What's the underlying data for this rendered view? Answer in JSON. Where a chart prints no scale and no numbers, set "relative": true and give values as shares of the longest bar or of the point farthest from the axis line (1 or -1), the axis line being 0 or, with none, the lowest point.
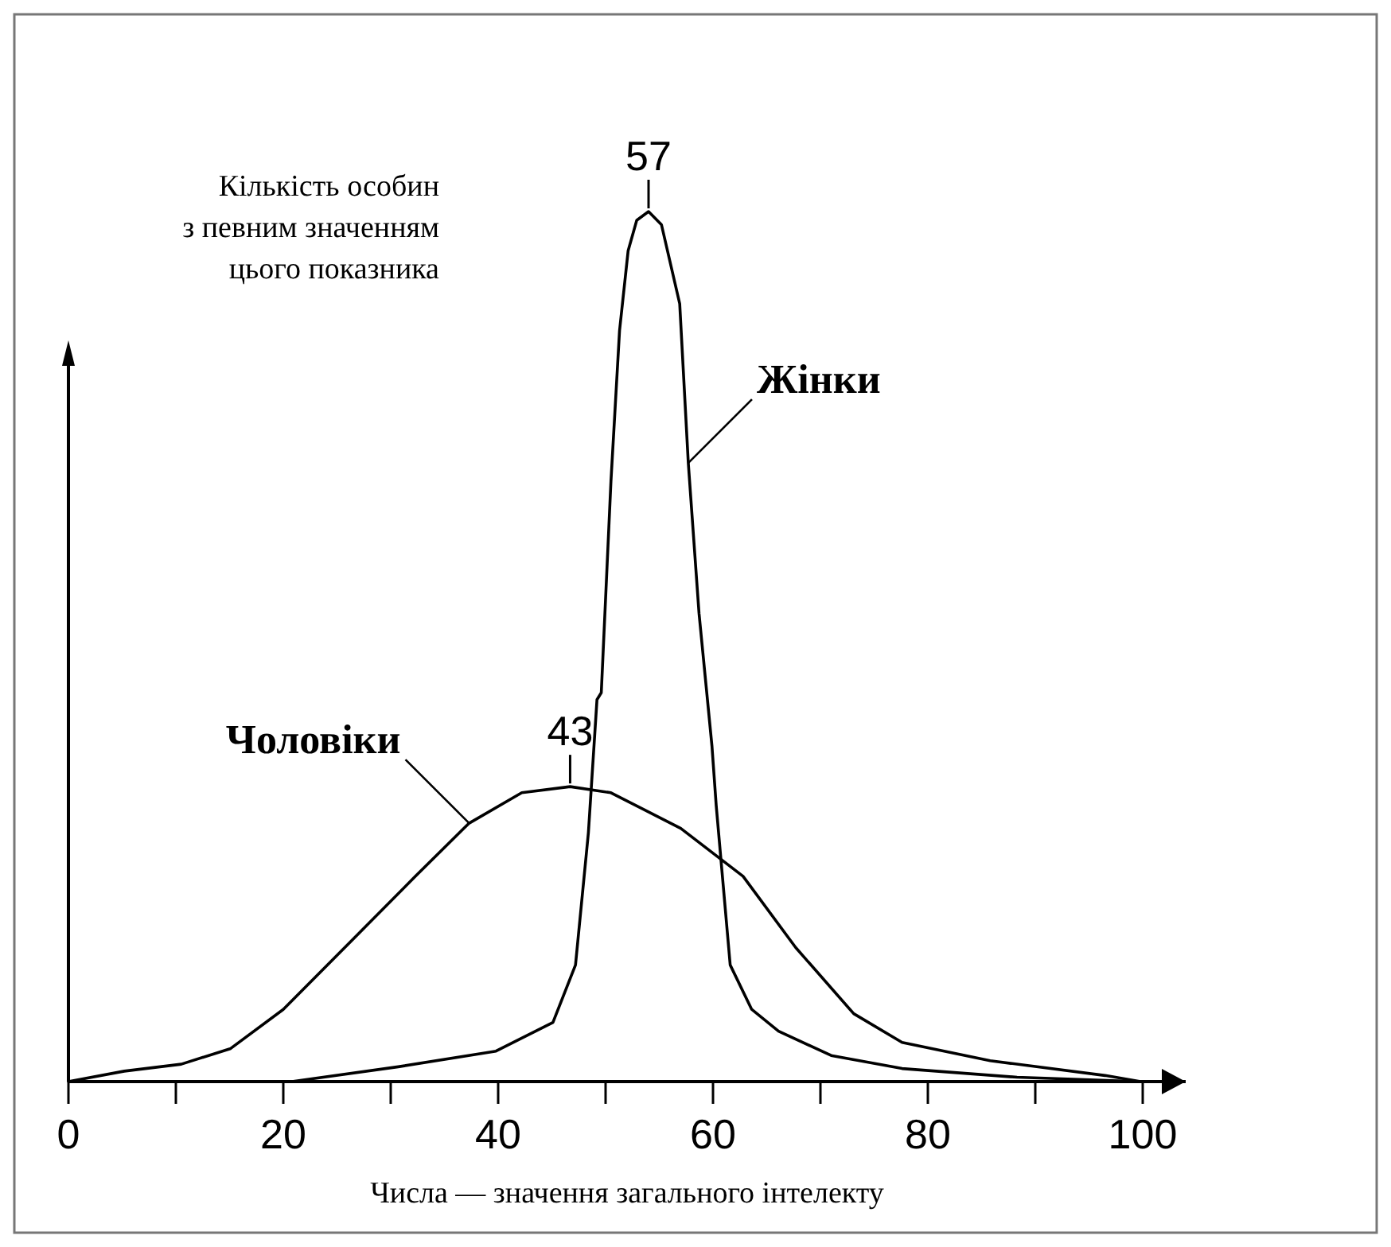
{
  "chart_data": {
    "type": "line",
    "relative": true,
    "xlabel": "Числа — значення загального інтелекту",
    "ylabel": "Кількість особин\nз певним значенням\nцього показника",
    "xlim": [
      0,
      104
    ],
    "xticks": [
      0,
      {
        "value": 10,
        "label": null
      },
      20,
      {
        "value": 30,
        "label": null
      },
      40,
      {
        "value": 50,
        "label": null
      },
      60,
      {
        "value": 70,
        "label": null
      },
      80,
      {
        "value": 90,
        "label": null
      },
      100
    ],
    "grid": false,
    "marker": "none",
    "line_style": "solid",
    "series": [
      {
        "name": "Жінки",
        "color": "#000000",
        "x": [
          20.8,
          30.7,
          39.8,
          45.1,
          47.2,
          48.4,
          49.2,
          49.6,
          50.5,
          51.3,
          52.1,
          52.9,
          54.0,
          55.2,
          56.9,
          57.7,
          58.7,
          59.9,
          60.3,
          61.6,
          63.6,
          66.1,
          71,
          77.6,
          88.3,
          99.8
        ],
        "values": [
          0,
          0.017,
          0.035,
          0.068,
          0.134,
          0.286,
          0.439,
          0.447,
          0.69,
          0.863,
          0.955,
          0.99,
          1,
          0.985,
          0.894,
          0.711,
          0.538,
          0.386,
          0.317,
          0.134,
          0.083,
          0.058,
          0.03,
          0.015,
          0.005,
          0
        ]
      },
      {
        "name": "Чоловіки",
        "color": "#000000",
        "x": [
          0,
          5.2,
          10.5,
          15.1,
          20,
          26.6,
          32.3,
          37.3,
          42.2,
          46.7,
          50.5,
          57,
          62.8,
          67.7,
          73.1,
          77.6,
          85.8,
          96.5,
          99.8
        ],
        "values": [
          0,
          0.012,
          0.02,
          0.038,
          0.083,
          0.165,
          0.236,
          0.297,
          0.332,
          0.339,
          0.332,
          0.291,
          0.236,
          0.154,
          0.078,
          0.045,
          0.024,
          0.007,
          0
        ]
      }
    ],
    "annotations": [
      {
        "text": "57",
        "x": 54,
        "y": 1
      },
      {
        "text": "43",
        "x": 46.7,
        "y": 0.339
      }
    ]
  }
}
